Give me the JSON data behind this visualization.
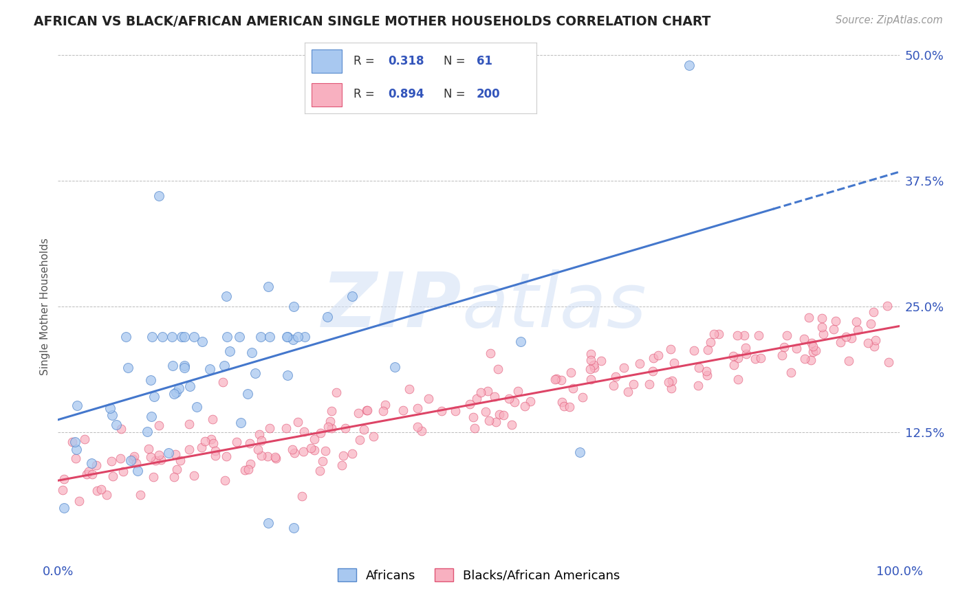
{
  "title": "AFRICAN VS BLACK/AFRICAN AMERICAN SINGLE MOTHER HOUSEHOLDS CORRELATION CHART",
  "source": "Source: ZipAtlas.com",
  "ylabel": "Single Mother Households",
  "xlim": [
    0,
    1.0
  ],
  "ylim": [
    0,
    0.5
  ],
  "african_color": "#A8C8F0",
  "african_edge": "#5588CC",
  "black_color": "#F8B0C0",
  "black_edge": "#E05575",
  "trend_african_color": "#4477CC",
  "trend_black_color": "#DD4466",
  "african_R": 0.318,
  "african_N": 61,
  "black_R": 0.894,
  "black_N": 200,
  "background_color": "#ffffff",
  "grid_color": "#bbbbbb",
  "title_color": "#222222",
  "axis_label_color": "#555555",
  "tick_color": "#3355BB",
  "legend_R_color": "#3355BB"
}
